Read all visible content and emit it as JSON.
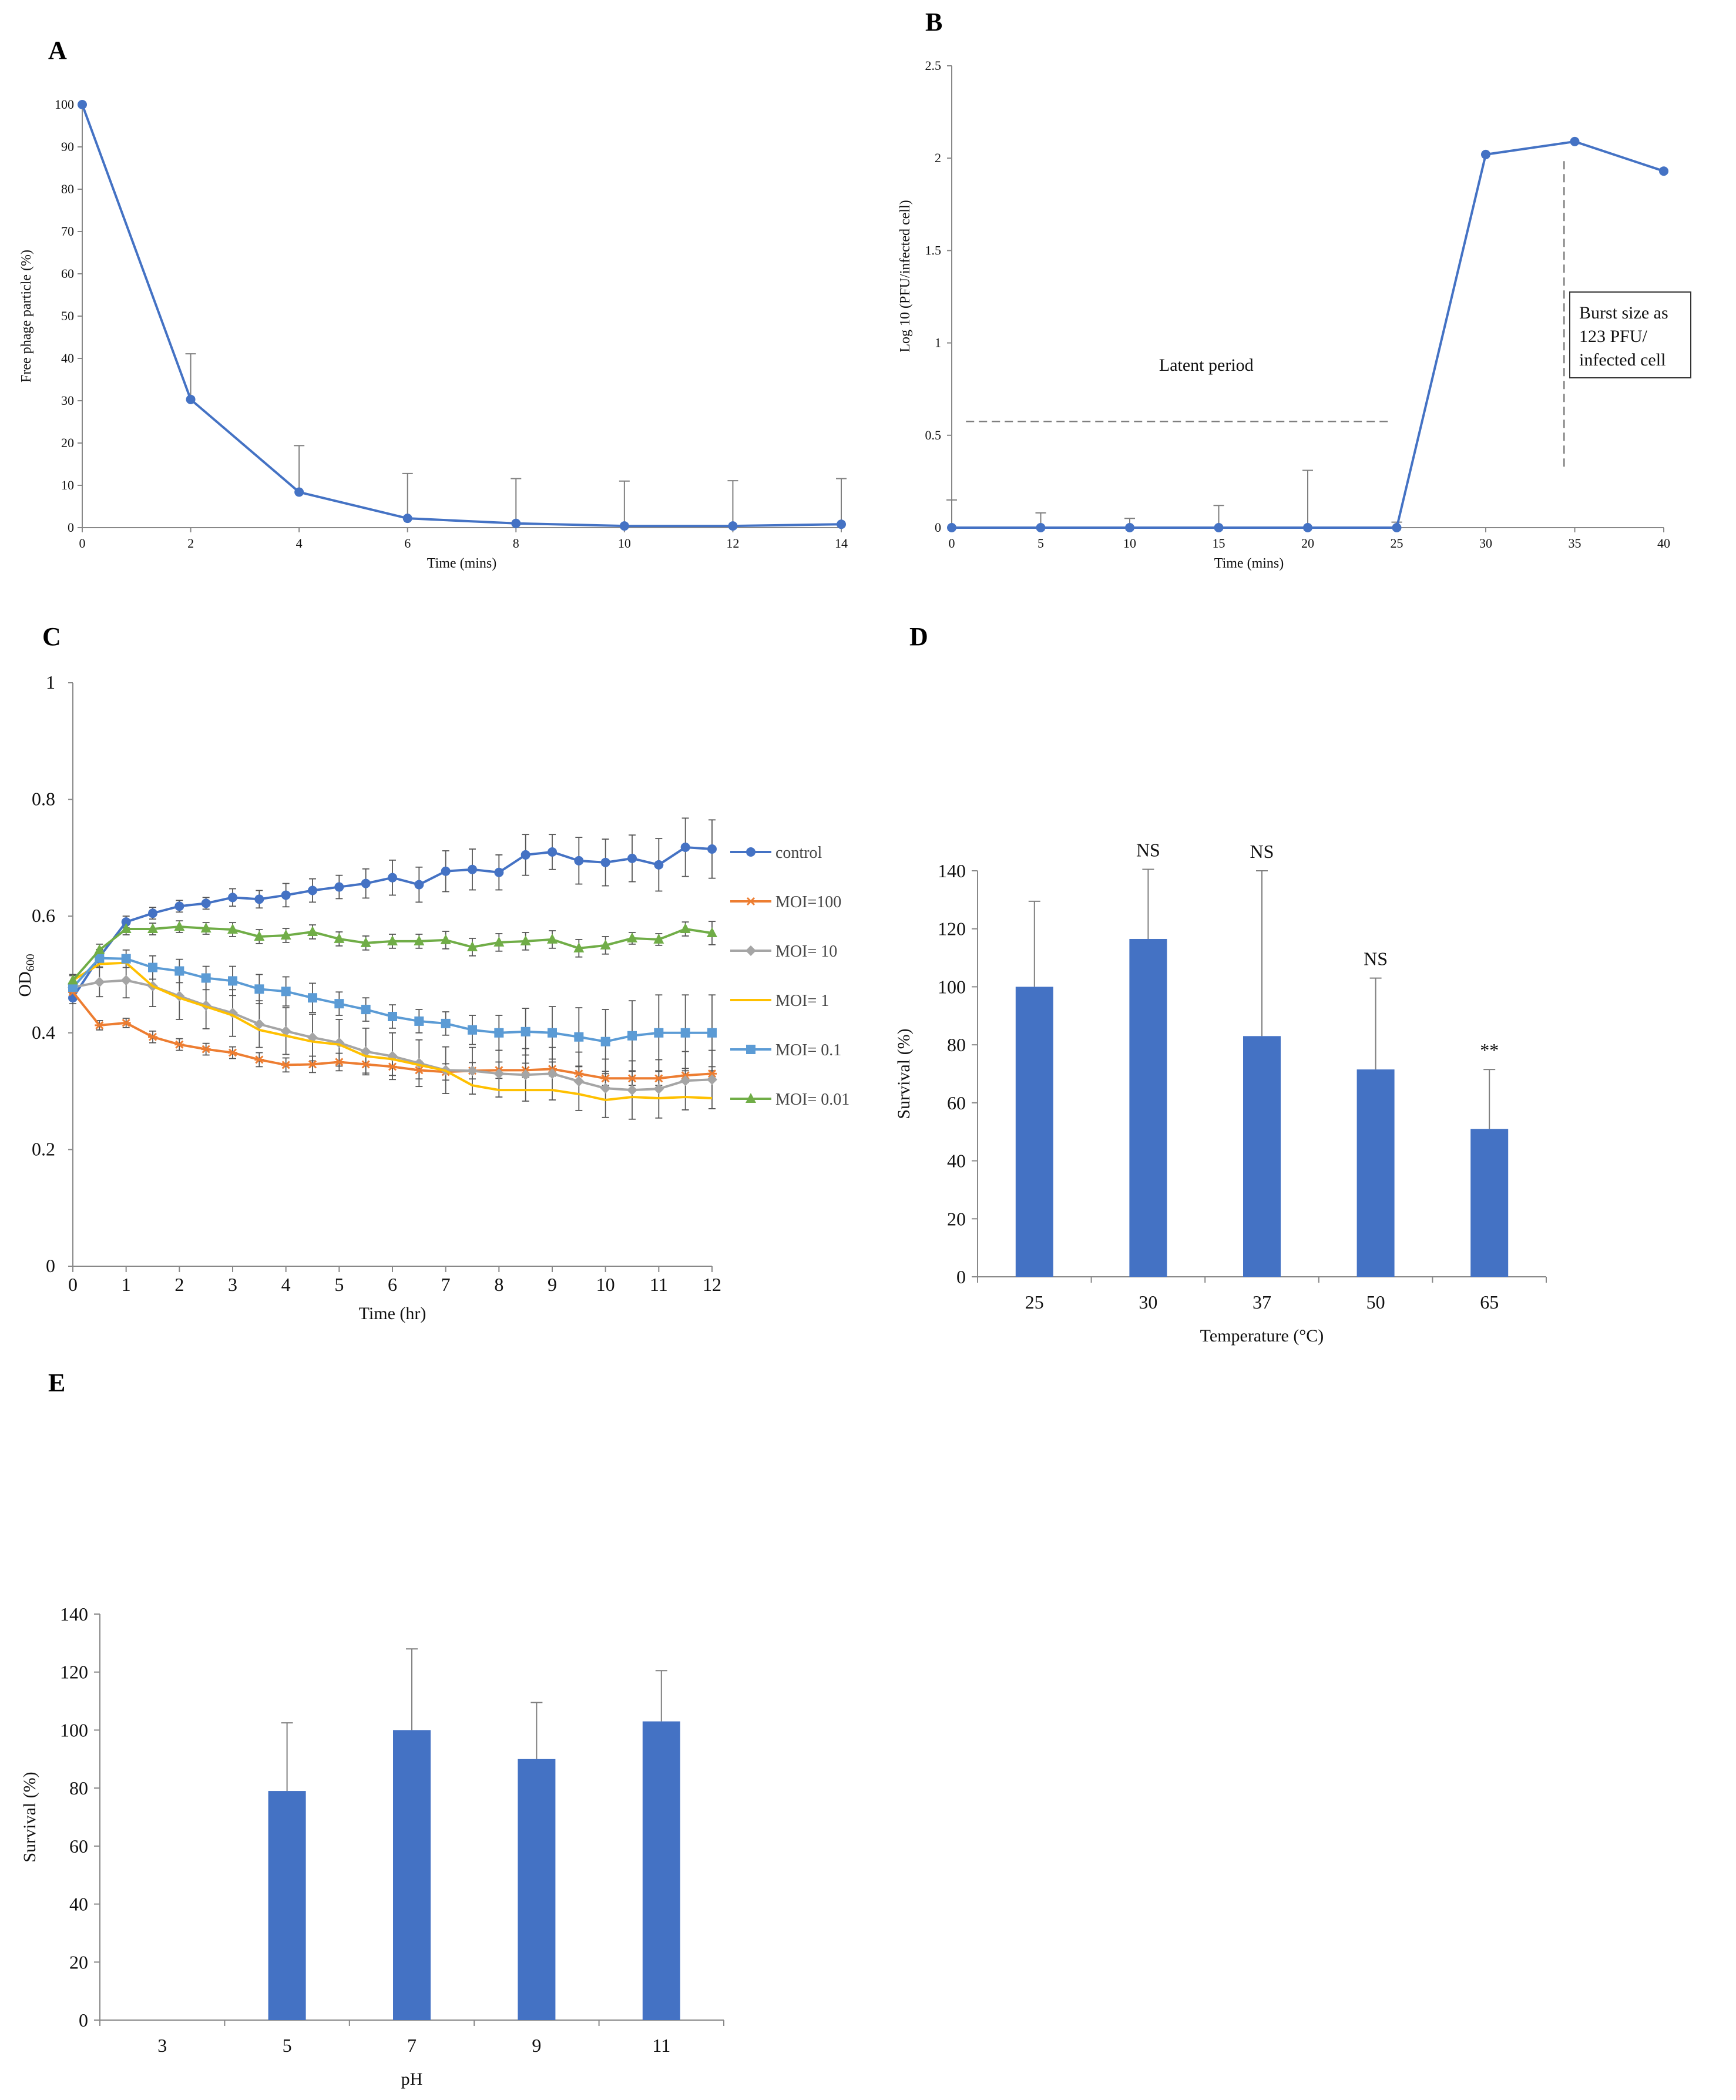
{
  "colors": {
    "blue_line": "#4472C4",
    "bar_blue": "#4472C4",
    "err": "#7F7F7F",
    "control": "#4472C4",
    "moi100": "#ED7D31",
    "moi10": "#A5A5A5",
    "moi1": "#FFC000",
    "moi01": "#5B9BD5",
    "moi001": "#70AD47"
  },
  "chart_data": [
    {
      "panel": "A",
      "type": "line",
      "xlabel": "Time (mins)",
      "ylabel": "Free phage particle (%)",
      "xlim": [
        0,
        14
      ],
      "ylim": [
        0,
        100
      ],
      "xticks": [
        0,
        2,
        4,
        6,
        8,
        10,
        12,
        14
      ],
      "yticks": [
        0,
        10,
        20,
        30,
        40,
        50,
        60,
        70,
        80,
        90,
        100
      ],
      "x": [
        0,
        2,
        4,
        6,
        8,
        10,
        12,
        14
      ],
      "y": [
        100,
        30.3,
        8.4,
        2.2,
        1.0,
        0.4,
        0.4,
        0.8
      ],
      "err": [
        0,
        10.8,
        11.0,
        10.6,
        10.6,
        10.6,
        10.7,
        10.8
      ]
    },
    {
      "panel": "B",
      "type": "line",
      "xlabel": "Time (mins)",
      "ylabel": "Log 10 (PFU/infected cell)",
      "xlim": [
        0,
        40
      ],
      "ylim": [
        0,
        2.5
      ],
      "xticks": [
        0,
        5,
        10,
        15,
        20,
        25,
        30,
        35,
        40
      ],
      "yticks": [
        0,
        0.5,
        1,
        1.5,
        2,
        2.5
      ],
      "x": [
        0,
        5,
        10,
        15,
        20,
        25,
        30,
        35,
        40
      ],
      "y": [
        0,
        0,
        0,
        0,
        0,
        0,
        2.02,
        2.09,
        1.93
      ],
      "err": [
        0.15,
        0.08,
        0.05,
        0.12,
        0.31,
        0.03,
        0,
        0,
        0
      ],
      "annotations": {
        "latent_period": "Latent period",
        "burst_lines": [
          "Burst size as",
          "123 PFU/",
          "infected cell"
        ]
      }
    },
    {
      "panel": "C",
      "type": "line",
      "xlabel": "Time (hr)",
      "ylabel": "OD",
      "ylabel_sub": "600",
      "xlim": [
        0,
        12
      ],
      "ylim": [
        0,
        1
      ],
      "xticks": [
        0,
        1,
        2,
        3,
        4,
        5,
        6,
        7,
        8,
        9,
        10,
        11,
        12
      ],
      "yticks": [
        "0",
        "0.2",
        "0.4",
        "0.6",
        "0.8",
        "1"
      ],
      "x": [
        0,
        0.5,
        1,
        1.5,
        2,
        2.5,
        3,
        3.5,
        4,
        4.5,
        5,
        5.5,
        6,
        6.5,
        7,
        7.5,
        8,
        8.5,
        9,
        9.5,
        10,
        10.5,
        11,
        11.5,
        12
      ],
      "series": [
        {
          "name": "control",
          "marker": "circle",
          "values": [
            0.46,
            0.53,
            0.59,
            0.605,
            0.617,
            0.622,
            0.632,
            0.629,
            0.636,
            0.644,
            0.65,
            0.656,
            0.666,
            0.654,
            0.677,
            0.68,
            0.675,
            0.705,
            0.71,
            0.695,
            0.692,
            0.699,
            0.688,
            0.718,
            0.715
          ],
          "err": [
            0.01,
            0.01,
            0.01,
            0.01,
            0.01,
            0.01,
            0.015,
            0.015,
            0.02,
            0.02,
            0.02,
            0.025,
            0.03,
            0.03,
            0.035,
            0.035,
            0.03,
            0.035,
            0.03,
            0.04,
            0.04,
            0.04,
            0.045,
            0.05,
            0.05
          ]
        },
        {
          "name": "MOI=100",
          "marker": "star",
          "values": [
            0.47,
            0.413,
            0.417,
            0.393,
            0.38,
            0.372,
            0.366,
            0.354,
            0.345,
            0.346,
            0.35,
            0.346,
            0.342,
            0.336,
            0.333,
            0.335,
            0.336,
            0.336,
            0.338,
            0.33,
            0.322,
            0.322,
            0.322,
            0.327,
            0.33
          ],
          "err": [
            0.01,
            0.008,
            0.008,
            0.01,
            0.01,
            0.01,
            0.01,
            0.012,
            0.012,
            0.014,
            0.015,
            0.015,
            0.015,
            0.015,
            0.014,
            0.014,
            0.014,
            0.012,
            0.012,
            0.012,
            0.012,
            0.012,
            0.012,
            0.012,
            0.012
          ]
        },
        {
          "name": "MOI= 10",
          "marker": "diamond",
          "values": [
            0.478,
            0.487,
            0.49,
            0.48,
            0.463,
            0.447,
            0.434,
            0.415,
            0.403,
            0.392,
            0.383,
            0.368,
            0.36,
            0.348,
            0.336,
            0.335,
            0.33,
            0.328,
            0.33,
            0.317,
            0.305,
            0.302,
            0.304,
            0.318,
            0.32
          ],
          "err": [
            0.02,
            0.025,
            0.03,
            0.035,
            0.04,
            0.04,
            0.04,
            0.04,
            0.04,
            0.04,
            0.04,
            0.04,
            0.04,
            0.04,
            0.04,
            0.04,
            0.04,
            0.045,
            0.045,
            0.05,
            0.05,
            0.05,
            0.05,
            0.05,
            0.05
          ]
        },
        {
          "name": "MOI= 1",
          "marker": "none",
          "values": [
            0.49,
            0.518,
            0.52,
            0.48,
            0.46,
            0.445,
            0.43,
            0.405,
            0.395,
            0.385,
            0.38,
            0.36,
            0.355,
            0.345,
            0.335,
            0.31,
            0.302,
            0.302,
            0.302,
            0.295,
            0.285,
            0.29,
            0.288,
            0.29,
            0.288
          ],
          "err": [
            0,
            0,
            0,
            0,
            0,
            0,
            0,
            0,
            0,
            0,
            0,
            0,
            0,
            0,
            0,
            0,
            0,
            0,
            0,
            0,
            0,
            0,
            0,
            0,
            0
          ]
        },
        {
          "name": "MOI= 0.1",
          "marker": "square",
          "values": [
            0.478,
            0.528,
            0.527,
            0.512,
            0.506,
            0.494,
            0.489,
            0.475,
            0.471,
            0.46,
            0.45,
            0.44,
            0.428,
            0.42,
            0.416,
            0.405,
            0.4,
            0.402,
            0.4,
            0.393,
            0.385,
            0.395,
            0.4,
            0.4,
            0.4
          ],
          "err": [
            0.01,
            0.015,
            0.015,
            0.02,
            0.02,
            0.02,
            0.025,
            0.025,
            0.025,
            0.025,
            0.02,
            0.02,
            0.02,
            0.02,
            0.02,
            0.025,
            0.03,
            0.04,
            0.045,
            0.05,
            0.055,
            0.06,
            0.065,
            0.065,
            0.065
          ]
        },
        {
          "name": "MOI= 0.01",
          "marker": "triangle",
          "values": [
            0.49,
            0.542,
            0.578,
            0.578,
            0.582,
            0.579,
            0.577,
            0.565,
            0.567,
            0.573,
            0.561,
            0.554,
            0.557,
            0.557,
            0.559,
            0.547,
            0.555,
            0.557,
            0.56,
            0.545,
            0.55,
            0.562,
            0.56,
            0.578,
            0.571
          ],
          "err": [
            0.01,
            0.01,
            0.01,
            0.01,
            0.01,
            0.01,
            0.012,
            0.012,
            0.012,
            0.012,
            0.012,
            0.012,
            0.012,
            0.012,
            0.015,
            0.015,
            0.015,
            0.015,
            0.015,
            0.015,
            0.015,
            0.01,
            0.01,
            0.012,
            0.02
          ]
        }
      ]
    },
    {
      "panel": "D",
      "type": "bar",
      "xlabel": "Temperature (°C)",
      "ylabel": "Survival (%)",
      "ylim": [
        0,
        140
      ],
      "yticks": [
        0,
        20,
        40,
        60,
        80,
        100,
        120,
        140
      ],
      "categories": [
        "25",
        "30",
        "37",
        "50",
        "65"
      ],
      "values": [
        100,
        116.5,
        83,
        71.5,
        51
      ],
      "err": [
        29.5,
        24,
        57,
        31.5,
        20.5
      ],
      "labels": [
        "",
        "NS",
        "NS",
        "NS",
        "**"
      ]
    },
    {
      "panel": "E",
      "type": "bar",
      "xlabel": "pH",
      "ylabel": "Survival (%)",
      "ylim": [
        0,
        140
      ],
      "yticks": [
        0,
        20,
        40,
        60,
        80,
        100,
        120,
        140
      ],
      "categories": [
        "3",
        "5",
        "7",
        "9",
        "11"
      ],
      "values": [
        0,
        79,
        100,
        90,
        103
      ],
      "err": [
        0,
        23.5,
        28,
        19.5,
        17.5
      ]
    }
  ]
}
